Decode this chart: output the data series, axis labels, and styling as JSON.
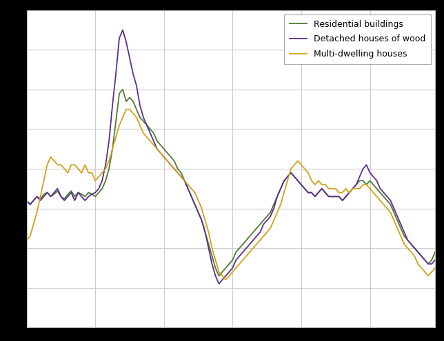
{
  "series_labels": [
    "Residential buildings",
    "Detached houses of wood",
    "Multi-dwelling houses"
  ],
  "series_colors": [
    "#4a7c2f",
    "#5b2d8e",
    "#d4a017"
  ],
  "line_width": 1.3,
  "background_color": "#ffffff",
  "figure_bg": "#000000",
  "grid_color": "#cccccc",
  "ylim": [
    -15,
    25
  ],
  "legend_fontsize": 9,
  "residential": [
    1.0,
    0.5,
    1.0,
    1.5,
    1.2,
    1.8,
    2.0,
    1.5,
    1.8,
    2.2,
    1.5,
    1.2,
    1.8,
    2.2,
    1.5,
    2.0,
    1.8,
    1.5,
    2.0,
    1.8,
    1.5,
    2.0,
    2.5,
    3.5,
    5.0,
    7.5,
    11.0,
    14.5,
    15.0,
    13.5,
    14.0,
    13.5,
    12.5,
    11.5,
    11.0,
    10.5,
    10.0,
    9.5,
    8.5,
    8.0,
    7.5,
    7.0,
    6.5,
    6.0,
    5.0,
    4.5,
    3.5,
    2.5,
    1.5,
    0.5,
    -0.5,
    -1.5,
    -3.0,
    -4.5,
    -6.0,
    -7.5,
    -8.5,
    -8.0,
    -7.5,
    -7.0,
    -6.5,
    -5.5,
    -5.0,
    -4.5,
    -4.0,
    -3.5,
    -3.0,
    -2.5,
    -2.0,
    -1.5,
    -1.0,
    -0.5,
    0.5,
    1.5,
    2.5,
    3.5,
    4.0,
    4.5,
    4.0,
    3.5,
    3.0,
    2.5,
    2.0,
    2.0,
    1.5,
    2.0,
    2.5,
    2.0,
    1.5,
    1.5,
    1.5,
    1.5,
    1.0,
    1.5,
    2.0,
    2.5,
    3.0,
    3.5,
    3.5,
    3.0,
    3.5,
    3.0,
    2.5,
    2.0,
    1.5,
    1.0,
    0.5,
    -0.5,
    -1.5,
    -2.5,
    -3.5,
    -4.0,
    -4.5,
    -5.0,
    -5.5,
    -6.0,
    -6.5,
    -7.0,
    -6.5,
    -5.5
  ],
  "detached": [
    1.0,
    0.5,
    1.0,
    1.5,
    1.0,
    1.5,
    2.0,
    1.5,
    2.0,
    2.5,
    1.5,
    1.0,
    1.5,
    2.0,
    1.0,
    2.0,
    1.5,
    1.0,
    1.5,
    1.8,
    2.0,
    2.5,
    3.5,
    5.5,
    8.5,
    13.0,
    17.0,
    21.5,
    22.5,
    21.0,
    19.0,
    17.0,
    15.5,
    13.0,
    11.5,
    10.5,
    9.5,
    8.5,
    7.5,
    7.0,
    6.5,
    6.0,
    5.5,
    5.0,
    4.5,
    4.0,
    3.5,
    2.5,
    1.5,
    0.5,
    -0.5,
    -1.5,
    -3.0,
    -5.0,
    -7.0,
    -8.5,
    -9.5,
    -9.0,
    -8.5,
    -8.0,
    -7.5,
    -6.5,
    -6.0,
    -5.5,
    -5.0,
    -4.5,
    -4.0,
    -3.5,
    -3.0,
    -2.0,
    -1.5,
    -1.0,
    0.0,
    1.5,
    2.5,
    3.5,
    4.0,
    4.5,
    4.0,
    3.5,
    3.0,
    2.5,
    2.0,
    2.0,
    1.5,
    2.0,
    2.5,
    2.0,
    1.5,
    1.5,
    1.5,
    1.5,
    1.0,
    1.5,
    2.0,
    2.5,
    3.0,
    4.0,
    5.0,
    5.5,
    4.5,
    4.0,
    3.5,
    2.5,
    2.0,
    1.5,
    1.0,
    0.0,
    -1.0,
    -2.0,
    -3.0,
    -4.0,
    -4.5,
    -5.0,
    -5.5,
    -6.0,
    -6.5,
    -7.0,
    -7.0,
    -6.5
  ],
  "multi": [
    -4.0,
    -3.5,
    -2.0,
    -0.5,
    1.5,
    3.5,
    5.5,
    6.5,
    6.0,
    5.5,
    5.5,
    5.0,
    4.5,
    5.5,
    5.5,
    5.0,
    4.5,
    5.5,
    4.5,
    4.5,
    3.5,
    4.0,
    4.5,
    5.0,
    6.0,
    7.5,
    9.0,
    10.5,
    11.5,
    12.5,
    12.5,
    12.0,
    11.5,
    10.5,
    9.5,
    9.0,
    8.5,
    8.0,
    7.5,
    7.0,
    6.5,
    6.0,
    5.5,
    5.0,
    4.5,
    4.0,
    3.5,
    3.0,
    2.5,
    2.0,
    1.0,
    0.0,
    -1.5,
    -3.0,
    -5.0,
    -6.5,
    -8.0,
    -8.5,
    -9.0,
    -8.5,
    -8.0,
    -7.5,
    -7.0,
    -6.5,
    -6.0,
    -5.5,
    -5.0,
    -4.5,
    -4.0,
    -3.5,
    -3.0,
    -2.5,
    -1.5,
    -0.5,
    0.5,
    2.0,
    3.5,
    5.0,
    5.5,
    6.0,
    5.5,
    5.0,
    4.5,
    3.5,
    3.0,
    3.5,
    3.0,
    3.0,
    2.5,
    2.5,
    2.5,
    2.0,
    2.0,
    2.5,
    2.0,
    2.5,
    2.5,
    2.5,
    3.0,
    3.0,
    2.5,
    2.0,
    1.5,
    1.0,
    0.5,
    0.0,
    -0.5,
    -1.5,
    -2.5,
    -3.5,
    -4.5,
    -5.0,
    -5.5,
    -6.0,
    -7.0,
    -7.5,
    -8.0,
    -8.5,
    -8.0,
    -7.5
  ]
}
